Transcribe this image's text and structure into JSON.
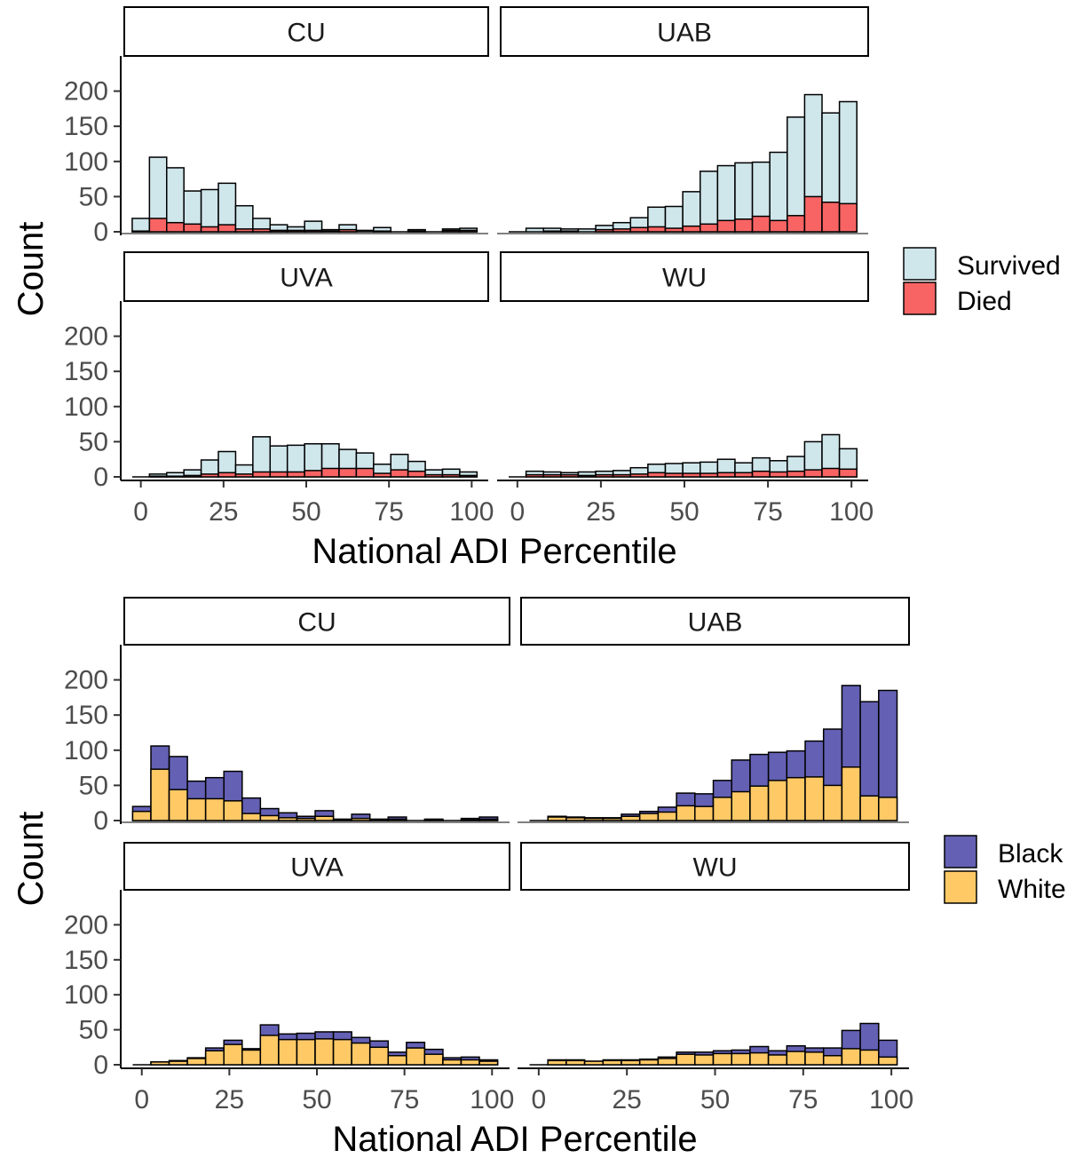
{
  "chart_data": [
    {
      "type": "bar",
      "stacked": true,
      "title": "",
      "xlabel": "National ADI Percentile",
      "ylabel": "Count",
      "xlim": [
        -5,
        105
      ],
      "ylim": [
        0,
        250
      ],
      "x_ticks": [
        0,
        25,
        50,
        75,
        100
      ],
      "y_ticks": [
        0,
        50,
        100,
        150,
        200
      ],
      "grid": false,
      "legend_position": "right",
      "bin_width": 5.21,
      "x": [
        0,
        5.21,
        10.42,
        15.63,
        20.84,
        26.05,
        31.26,
        36.47,
        41.68,
        46.89,
        52.11,
        57.32,
        62.53,
        67.74,
        72.95,
        78.16,
        83.37,
        88.58,
        93.79,
        99
      ],
      "series_order": [
        "Survived",
        "Died"
      ],
      "series_colors": {
        "Survived": "#cfe6eb",
        "Died": "#f86464"
      },
      "panels": [
        {
          "name": "CU",
          "series": [
            {
              "name": "Survived",
              "values": [
                18,
                87,
                78,
                47,
                53,
                59,
                33,
                15,
                8,
                5,
                13,
                2,
                7,
                2,
                5,
                0,
                2,
                0,
                2,
                3
              ]
            },
            {
              "name": "Died",
              "values": [
                1,
                19,
                13,
                11,
                7,
                10,
                4,
                4,
                2,
                2,
                2,
                1,
                3,
                0,
                1,
                0,
                1,
                0,
                2,
                2
              ]
            }
          ]
        },
        {
          "name": "UAB",
          "series": [
            {
              "name": "Survived",
              "values": [
                0,
                5,
                4,
                3,
                4,
                6,
                9,
                14,
                28,
                31,
                49,
                75,
                78,
                80,
                77,
                97,
                140,
                145,
                127,
                145
              ]
            },
            {
              "name": "Died",
              "values": [
                0,
                0,
                1,
                1,
                0,
                3,
                4,
                6,
                7,
                5,
                8,
                11,
                16,
                18,
                22,
                16,
                23,
                50,
                42,
                40
              ]
            }
          ]
        },
        {
          "name": "UVA",
          "series": [
            {
              "name": "Survived",
              "values": [
                0,
                3,
                5,
                8,
                20,
                30,
                13,
                50,
                37,
                38,
                38,
                35,
                27,
                22,
                13,
                22,
                14,
                7,
                8,
                5
              ]
            },
            {
              "name": "Died",
              "values": [
                0,
                1,
                1,
                2,
                4,
                6,
                4,
                7,
                7,
                7,
                9,
                12,
                12,
                12,
                5,
                10,
                8,
                3,
                3,
                2
              ]
            }
          ]
        },
        {
          "name": "WU",
          "series": [
            {
              "name": "Survived",
              "values": [
                0,
                5,
                4,
                3,
                5,
                5,
                6,
                9,
                12,
                14,
                15,
                16,
                19,
                14,
                19,
                16,
                21,
                40,
                48,
                29
              ]
            },
            {
              "name": "Died",
              "values": [
                0,
                3,
                3,
                3,
                2,
                3,
                3,
                4,
                6,
                5,
                5,
                5,
                6,
                6,
                8,
                7,
                8,
                10,
                12,
                11
              ]
            }
          ]
        }
      ]
    },
    {
      "type": "bar",
      "stacked": true,
      "title": "",
      "xlabel": "National ADI Percentile",
      "ylabel": "Count",
      "xlim": [
        -5,
        105
      ],
      "ylim": [
        0,
        250
      ],
      "x_ticks": [
        0,
        25,
        50,
        75,
        100
      ],
      "y_ticks": [
        0,
        50,
        100,
        150,
        200
      ],
      "grid": false,
      "legend_position": "right",
      "bin_width": 5.21,
      "x": [
        0,
        5.21,
        10.42,
        15.63,
        20.84,
        26.05,
        31.26,
        36.47,
        41.68,
        46.89,
        52.11,
        57.32,
        62.53,
        67.74,
        72.95,
        78.16,
        83.37,
        88.58,
        93.79,
        99
      ],
      "series_order": [
        "Black",
        "White"
      ],
      "series_colors": {
        "Black": "#6460b4",
        "White": "#ffc966"
      },
      "panels": [
        {
          "name": "CU",
          "series": [
            {
              "name": "Black",
              "values": [
                7,
                33,
                47,
                25,
                30,
                42,
                22,
                10,
                7,
                3,
                8,
                1,
                6,
                1,
                3,
                0,
                1,
                0,
                2,
                3
              ]
            },
            {
              "name": "White",
              "values": [
                13,
                73,
                44,
                31,
                31,
                28,
                10,
                7,
                4,
                3,
                6,
                1,
                3,
                1,
                2,
                0,
                1,
                0,
                1,
                2
              ]
            }
          ]
        },
        {
          "name": "UAB",
          "series": [
            {
              "name": "Black",
              "values": [
                0,
                1,
                1,
                1,
                1,
                3,
                3,
                7,
                18,
                18,
                24,
                45,
                45,
                40,
                38,
                51,
                80,
                116,
                134,
                152
              ]
            },
            {
              "name": "White",
              "values": [
                0,
                5,
                4,
                3,
                3,
                6,
                10,
                12,
                21,
                20,
                33,
                41,
                49,
                57,
                61,
                62,
                50,
                76,
                35,
                33
              ]
            }
          ]
        },
        {
          "name": "UVA",
          "series": [
            {
              "name": "Black",
              "values": [
                0,
                0,
                1,
                1,
                4,
                6,
                2,
                15,
                8,
                9,
                10,
                11,
                8,
                9,
                5,
                8,
                7,
                3,
                4,
                2
              ]
            },
            {
              "name": "White",
              "values": [
                0,
                4,
                5,
                9,
                20,
                29,
                21,
                42,
                36,
                36,
                37,
                36,
                31,
                25,
                13,
                24,
                15,
                7,
                7,
                5
              ]
            }
          ]
        },
        {
          "name": "WU",
          "series": [
            {
              "name": "Black",
              "values": [
                0,
                1,
                1,
                0,
                1,
                1,
                1,
                2,
                3,
                4,
                4,
                5,
                9,
                6,
                8,
                6,
                11,
                26,
                38,
                24
              ]
            },
            {
              "name": "White",
              "values": [
                0,
                6,
                6,
                5,
                6,
                6,
                7,
                9,
                15,
                14,
                16,
                16,
                17,
                14,
                19,
                18,
                13,
                23,
                21,
                11
              ]
            }
          ]
        }
      ]
    }
  ],
  "legends": [
    {
      "items": [
        {
          "label": "Survived",
          "color": "#cfe6eb"
        },
        {
          "label": "Died",
          "color": "#f86464"
        }
      ]
    },
    {
      "items": [
        {
          "label": "Black",
          "color": "#6460b4"
        },
        {
          "label": "White",
          "color": "#ffc966"
        }
      ]
    }
  ]
}
